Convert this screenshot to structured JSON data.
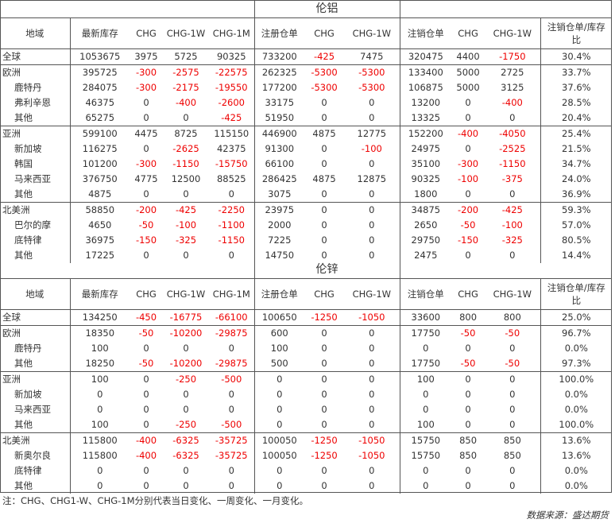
{
  "headers": [
    "地域",
    "最新库存",
    "CHG",
    "CHG-1W",
    "CHG-1M",
    "注册仓单",
    "CHG",
    "CHG-1W",
    "注销仓单",
    "CHG",
    "CHG-1W",
    "注销仓单/库存比"
  ],
  "tables": [
    {
      "title": "伦铝",
      "rows": [
        [
          "全球",
          "1053675",
          "3975",
          "5725",
          "90325",
          "733200",
          "-425",
          "7475",
          "320475",
          "4400",
          "-1750",
          "30.4%"
        ],
        [
          "欧洲",
          "395725",
          "-300",
          "-2575",
          "-22575",
          "262325",
          "-5300",
          "-5300",
          "133400",
          "5000",
          "2725",
          "33.7%"
        ],
        [
          "鹿特丹",
          "284075",
          "-300",
          "-2175",
          "-19550",
          "177200",
          "-5300",
          "-5300",
          "106875",
          "5000",
          "3125",
          "37.6%"
        ],
        [
          "弗利辛恩",
          "46375",
          "0",
          "-400",
          "-2600",
          "33175",
          "0",
          "0",
          "13200",
          "0",
          "-400",
          "28.5%"
        ],
        [
          "其他",
          "65275",
          "0",
          "0",
          "-425",
          "51950",
          "0",
          "0",
          "13325",
          "0",
          "0",
          "20.4%"
        ],
        [
          "亚洲",
          "599100",
          "4475",
          "8725",
          "115150",
          "446900",
          "4875",
          "12775",
          "152200",
          "-400",
          "-4050",
          "25.4%"
        ],
        [
          "新加坡",
          "116275",
          "0",
          "-2625",
          "42375",
          "91300",
          "0",
          "-100",
          "24975",
          "0",
          "-2525",
          "21.5%"
        ],
        [
          "韩国",
          "101200",
          "-300",
          "-1150",
          "-15750",
          "66100",
          "0",
          "0",
          "35100",
          "-300",
          "-1150",
          "34.7%"
        ],
        [
          "马来西亚",
          "376750",
          "4775",
          "12500",
          "88525",
          "286425",
          "4875",
          "12875",
          "90325",
          "-100",
          "-375",
          "24.0%"
        ],
        [
          "其他",
          "4875",
          "0",
          "0",
          "0",
          "3075",
          "0",
          "0",
          "1800",
          "0",
          "0",
          "36.9%"
        ],
        [
          "北美洲",
          "58850",
          "-200",
          "-425",
          "-2250",
          "23975",
          "0",
          "0",
          "34875",
          "-200",
          "-425",
          "59.3%"
        ],
        [
          "巴尔的摩",
          "4650",
          "-50",
          "-100",
          "-1100",
          "2000",
          "0",
          "0",
          "2650",
          "-50",
          "-100",
          "57.0%"
        ],
        [
          "底特律",
          "36975",
          "-150",
          "-325",
          "-1150",
          "7225",
          "0",
          "0",
          "29750",
          "-150",
          "-325",
          "80.5%"
        ],
        [
          "其他",
          "17225",
          "0",
          "0",
          "0",
          "14750",
          "0",
          "0",
          "2475",
          "0",
          "0",
          "14.4%"
        ]
      ]
    },
    {
      "title": "伦锌",
      "rows": [
        [
          "全球",
          "134250",
          "-450",
          "-16775",
          "-66100",
          "100650",
          "-1250",
          "-1050",
          "33600",
          "800",
          "800",
          "25.0%"
        ],
        [
          "欧洲",
          "18350",
          "-50",
          "-10200",
          "-29875",
          "600",
          "0",
          "0",
          "17750",
          "-50",
          "-50",
          "96.7%"
        ],
        [
          "鹿特丹",
          "100",
          "0",
          "0",
          "0",
          "100",
          "0",
          "0",
          "0",
          "0",
          "0",
          "0.0%"
        ],
        [
          "其他",
          "18250",
          "-50",
          "-10200",
          "-29875",
          "500",
          "0",
          "0",
          "17750",
          "-50",
          "-50",
          "97.3%"
        ],
        [
          "亚洲",
          "100",
          "0",
          "-250",
          "-500",
          "0",
          "0",
          "0",
          "100",
          "0",
          "0",
          "100.0%"
        ],
        [
          "新加坡",
          "0",
          "0",
          "0",
          "0",
          "0",
          "0",
          "0",
          "0",
          "0",
          "0",
          "0.0%"
        ],
        [
          "马来西亚",
          "0",
          "0",
          "0",
          "0",
          "0",
          "0",
          "0",
          "0",
          "0",
          "0",
          "0.0%"
        ],
        [
          "其他",
          "100",
          "0",
          "-250",
          "-500",
          "0",
          "0",
          "0",
          "100",
          "0",
          "0",
          "100.0%"
        ],
        [
          "北美洲",
          "115800",
          "-400",
          "-6325",
          "-35725",
          "100050",
          "-1250",
          "-1050",
          "15750",
          "850",
          "850",
          "13.6%"
        ],
        [
          "新奥尔良",
          "115800",
          "-400",
          "-6325",
          "-35725",
          "100050",
          "-1250",
          "-1050",
          "15750",
          "850",
          "850",
          "13.6%"
        ],
        [
          "底特律",
          "0",
          "0",
          "0",
          "0",
          "0",
          "0",
          "0",
          "0",
          "0",
          "0",
          "0.0%"
        ],
        [
          "其他",
          "0",
          "0",
          "0",
          "0",
          "0",
          "0",
          "0",
          "0",
          "0",
          "0",
          "0.0%"
        ]
      ]
    }
  ],
  "note": "注：CHG、CHG1-W、CHG-1M分别代表当日变化、一周变化、一月变化。",
  "source": "数据来源：盛达期货",
  "negative_color": "#ee0000"
}
